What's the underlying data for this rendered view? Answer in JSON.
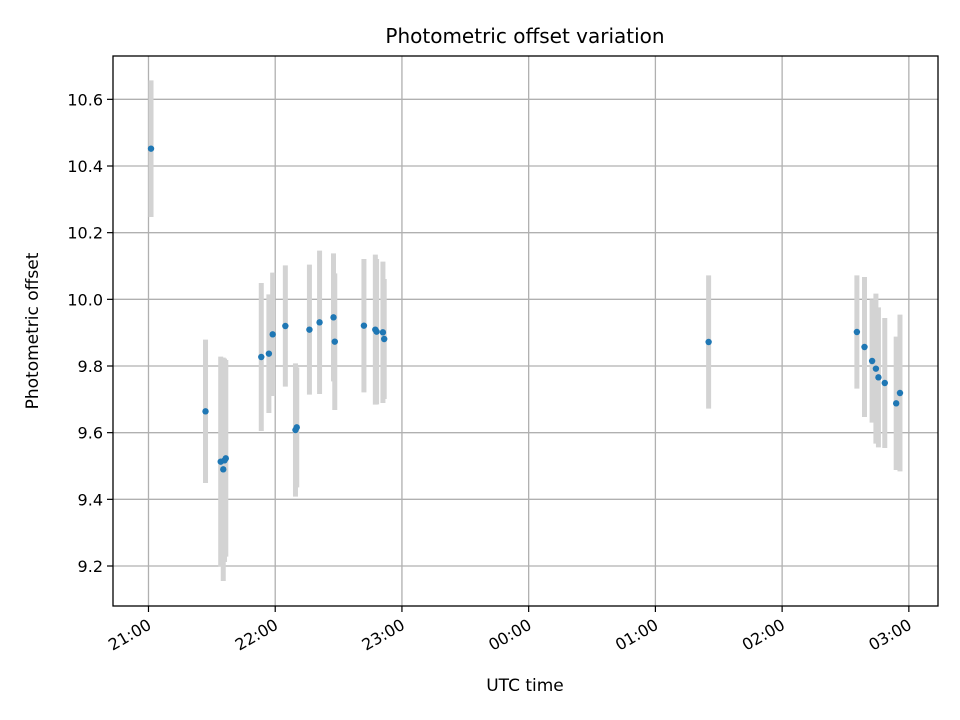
{
  "chart_data": {
    "type": "scatter",
    "title": "Photometric offset variation",
    "xlabel": "UTC time",
    "ylabel": "Photometric offset",
    "grid": true,
    "x_unit": "UTC time (hours since 21:00, 21:00 = 0)",
    "xlim": [
      -0.28,
      6.23
    ],
    "ylim": [
      9.08,
      10.73
    ],
    "x_ticks": [
      {
        "value": 0,
        "label": "21:00"
      },
      {
        "value": 1,
        "label": "22:00"
      },
      {
        "value": 2,
        "label": "23:00"
      },
      {
        "value": 3,
        "label": "00:00"
      },
      {
        "value": 4,
        "label": "01:00"
      },
      {
        "value": 5,
        "label": "02:00"
      },
      {
        "value": 6,
        "label": "03:00"
      }
    ],
    "y_ticks": [
      {
        "value": 9.2,
        "label": "9.2"
      },
      {
        "value": 9.4,
        "label": "9.4"
      },
      {
        "value": 9.6,
        "label": "9.6"
      },
      {
        "value": 9.8,
        "label": "9.8"
      },
      {
        "value": 10.0,
        "label": "10.0"
      },
      {
        "value": 10.2,
        "label": "10.2"
      },
      {
        "value": 10.4,
        "label": "10.4"
      },
      {
        "value": 10.6,
        "label": "10.6"
      }
    ],
    "marker_color": "#1f77b4",
    "errorbar_color": "#d3d3d3",
    "series": [
      {
        "points": [
          {
            "x": 0.02,
            "y": 10.452,
            "yerr": 0.205
          },
          {
            "x": 0.45,
            "y": 9.664,
            "yerr": 0.215
          },
          {
            "x": 0.57,
            "y": 9.513,
            "yerr": 0.315
          },
          {
            "x": 0.59,
            "y": 9.49,
            "yerr": 0.335
          },
          {
            "x": 0.6,
            "y": 9.517,
            "yerr": 0.305
          },
          {
            "x": 0.61,
            "y": 9.523,
            "yerr": 0.295
          },
          {
            "x": 0.89,
            "y": 9.827,
            "yerr": 0.222
          },
          {
            "x": 0.95,
            "y": 9.837,
            "yerr": 0.178
          },
          {
            "x": 0.98,
            "y": 9.895,
            "yerr": 0.185
          },
          {
            "x": 1.08,
            "y": 9.92,
            "yerr": 0.182
          },
          {
            "x": 1.16,
            "y": 9.608,
            "yerr": 0.2
          },
          {
            "x": 1.17,
            "y": 9.616,
            "yerr": 0.18
          },
          {
            "x": 1.27,
            "y": 9.909,
            "yerr": 0.195
          },
          {
            "x": 1.35,
            "y": 9.931,
            "yerr": 0.215
          },
          {
            "x": 1.46,
            "y": 9.946,
            "yerr": 0.192
          },
          {
            "x": 1.47,
            "y": 9.873,
            "yerr": 0.205
          },
          {
            "x": 1.7,
            "y": 9.921,
            "yerr": 0.2
          },
          {
            "x": 1.79,
            "y": 9.909,
            "yerr": 0.225
          },
          {
            "x": 1.8,
            "y": 9.903,
            "yerr": 0.218
          },
          {
            "x": 1.85,
            "y": 9.901,
            "yerr": 0.212
          },
          {
            "x": 1.86,
            "y": 9.881,
            "yerr": 0.18
          },
          {
            "x": 4.42,
            "y": 9.872,
            "yerr": 0.2
          },
          {
            "x": 5.59,
            "y": 9.902,
            "yerr": 0.17
          },
          {
            "x": 5.65,
            "y": 9.857,
            "yerr": 0.21
          },
          {
            "x": 5.71,
            "y": 9.815,
            "yerr": 0.185
          },
          {
            "x": 5.74,
            "y": 9.792,
            "yerr": 0.225
          },
          {
            "x": 5.76,
            "y": 9.766,
            "yerr": 0.21
          },
          {
            "x": 5.81,
            "y": 9.749,
            "yerr": 0.195
          },
          {
            "x": 5.9,
            "y": 9.688,
            "yerr": 0.2
          },
          {
            "x": 5.93,
            "y": 9.719,
            "yerr": 0.235
          }
        ]
      }
    ]
  }
}
